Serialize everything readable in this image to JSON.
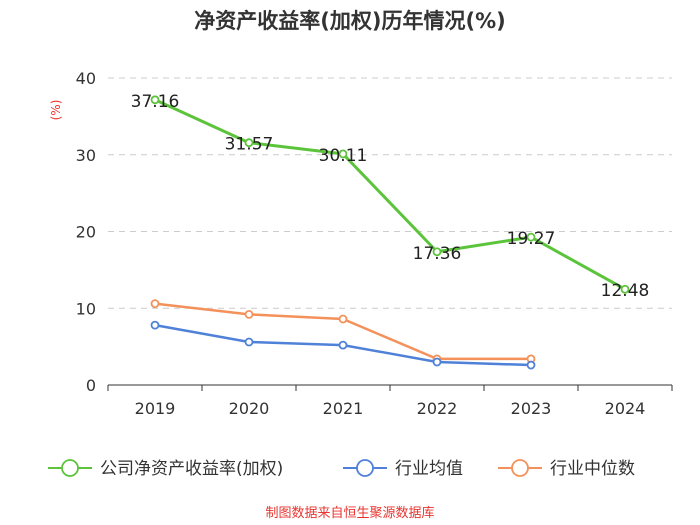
{
  "chart_data": {
    "type": "line",
    "title": "净资产收益率(加权)历年情况(%)",
    "ylabel": "(%)",
    "xlabel": "",
    "ylim": [
      0,
      40
    ],
    "yticks": [
      0,
      10,
      20,
      30,
      40
    ],
    "grid": true,
    "legend_position": "bottom",
    "categories": [
      "2019",
      "2020",
      "2021",
      "2022",
      "2023",
      "2024"
    ],
    "series": [
      {
        "name": "公司净资产收益率(加权)",
        "color": "#5cc43b",
        "values": [
          37.16,
          31.57,
          30.11,
          17.36,
          19.27,
          12.48
        ],
        "labels": [
          "37.16",
          "31.57",
          "30.11",
          "17.36",
          "19.27",
          "12.48"
        ]
      },
      {
        "name": "行业均值",
        "color": "#4f81d8",
        "values": [
          7.8,
          5.6,
          5.2,
          3.0,
          2.6,
          null
        ]
      },
      {
        "name": "行业中位数",
        "color": "#f4915a",
        "values": [
          10.6,
          9.2,
          8.6,
          3.4,
          3.4,
          null
        ]
      }
    ],
    "source": "制图数据来自恒生聚源数据库"
  }
}
